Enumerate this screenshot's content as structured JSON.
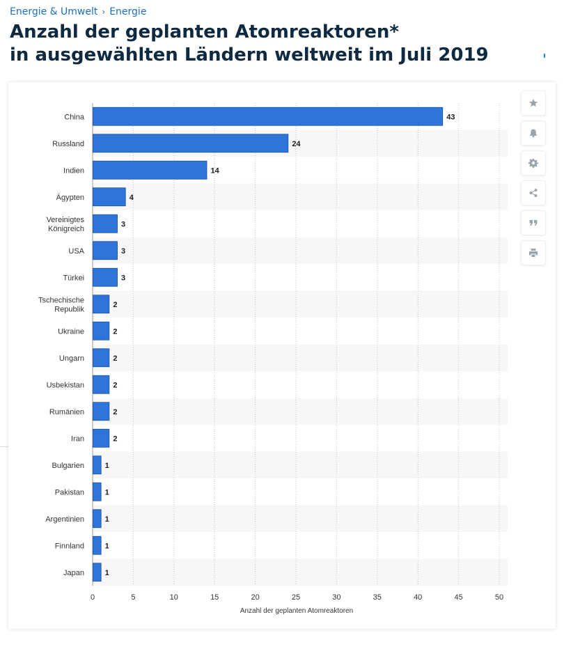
{
  "breadcrumb": {
    "items": [
      "Energie & Umwelt",
      "Energie"
    ],
    "separator": "›"
  },
  "title": {
    "line1": "Anzahl der geplanten Atomreaktoren*",
    "line2": "in ausgewählten Ländern weltweit im Juli 2019"
  },
  "toolbar": {
    "icons": [
      "star-icon",
      "bell-icon",
      "gear-icon",
      "share-icon",
      "quote-icon",
      "print-icon"
    ]
  },
  "colors": {
    "bar": "#2f74d8",
    "bar_border": "#1d4fa0",
    "band": "#f7f7f7",
    "title": "#0d2a40",
    "link": "#1d6fb8"
  },
  "chart_data": {
    "type": "bar",
    "orientation": "horizontal",
    "categories": [
      "China",
      "Russland",
      "Indien",
      "Ägypten",
      "Vereinigtes\nKönigreich",
      "USA",
      "Türkei",
      "Tschechische\nRepublik",
      "Ukraine",
      "Ungarn",
      "Usbekistan",
      "Rumänien",
      "Iran",
      "Bulgarien",
      "Pakistan",
      "Argentinien",
      "Finnland",
      "Japan"
    ],
    "values": [
      43,
      24,
      14,
      4,
      3,
      3,
      3,
      2,
      2,
      2,
      2,
      2,
      2,
      1,
      1,
      1,
      1,
      1
    ],
    "xlabel": "Anzahl der geplanten Atomreaktoren",
    "ylabel": "",
    "xlim": [
      0,
      50
    ],
    "ticks": [
      0,
      5,
      10,
      15,
      20,
      25,
      30,
      35,
      40,
      45,
      50
    ],
    "grid": "vertical dotted",
    "data_labels": true
  }
}
